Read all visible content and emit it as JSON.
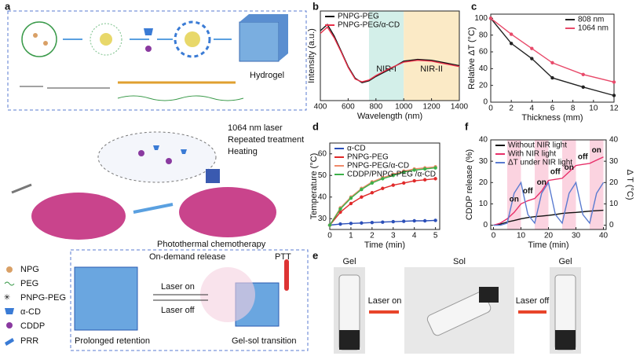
{
  "panel_labels": [
    "a",
    "b",
    "c",
    "d",
    "e",
    "f"
  ],
  "panel_a": {
    "hydrogel_label": "Hydrogel"
  },
  "schematic": {
    "laser": "1064 nm laser",
    "repeat": "Repeated treatment",
    "heating": "Heating",
    "box_title": "Photothermal chemotherapy",
    "release": "On-demand release",
    "ptt": "PTT",
    "laser_on": "Laser on",
    "laser_off": "Laser off",
    "retention": "Prolonged retention",
    "transition": "Gel-sol transition",
    "legend": [
      "NPG",
      "PEG",
      "PNPG-PEG",
      "α-CD",
      "CDDP",
      "PRR"
    ]
  },
  "panel_e": {
    "left": "Gel",
    "middle": "Sol",
    "right": "Gel",
    "laser_on": "Laser on",
    "laser_off": "Laser off"
  },
  "chart_data": [
    {
      "type": "line",
      "x_label": "Wavelength (nm)",
      "y_label": "Intensity (a.u.)",
      "x": [
        400,
        450,
        500,
        550,
        600,
        650,
        700,
        750,
        800,
        900,
        1000,
        1100,
        1200,
        1300,
        1400
      ],
      "series": [
        {
          "name": "PNPG-PEG",
          "color": "#111111",
          "values": [
            0.78,
            0.85,
            0.72,
            0.55,
            0.38,
            0.25,
            0.2,
            0.22,
            0.27,
            0.35,
            0.44,
            0.46,
            0.45,
            0.42,
            0.39
          ]
        },
        {
          "name": "PNPG-PEG/α-CD",
          "color": "#e8304a",
          "values": [
            0.75,
            0.82,
            0.7,
            0.54,
            0.37,
            0.24,
            0.21,
            0.23,
            0.28,
            0.36,
            0.43,
            0.45,
            0.44,
            0.41,
            0.38
          ]
        }
      ],
      "regions": [
        {
          "label": "NIR-I",
          "start": 750,
          "end": 1000,
          "color": "#d3efe9"
        },
        {
          "label": "NIR-II",
          "start": 1000,
          "end": 1400,
          "color": "#fbeac6"
        }
      ],
      "xlim": [
        400,
        1400
      ],
      "ylim": [
        0,
        1
      ],
      "xticks": [
        400,
        600,
        800,
        1000,
        1200,
        1400
      ],
      "yticks": [],
      "legend": "upper left"
    },
    {
      "type": "line",
      "markers": true,
      "x_label": "Thickness (mm)",
      "y_label": "Relative ΔT (°C)",
      "x": [
        0,
        2,
        4,
        6,
        9,
        12
      ],
      "series": [
        {
          "name": "808 nm",
          "color": "#222222",
          "values": [
            100,
            70,
            52,
            29,
            18,
            8
          ]
        },
        {
          "name": "1064 nm",
          "color": "#e84a6a",
          "values": [
            100,
            81,
            64,
            47,
            33,
            24
          ]
        }
      ],
      "xlim": [
        0,
        12
      ],
      "ylim": [
        0,
        105
      ],
      "xticks": [
        0,
        2,
        4,
        6,
        8,
        10,
        12
      ],
      "yticks": [
        0,
        20,
        40,
        60,
        80,
        100
      ],
      "legend": "upper right"
    },
    {
      "type": "line",
      "markers": true,
      "x_label": "Time (min)",
      "y_label": "Temperature (°C)",
      "x": [
        0,
        0.5,
        1,
        1.5,
        2,
        2.5,
        3,
        3.5,
        4,
        4.5,
        5
      ],
      "series": [
        {
          "name": "α-CD",
          "color": "#2b4fb8",
          "values": [
            27,
            27.5,
            27.8,
            28,
            28.2,
            28.4,
            28.6,
            28.8,
            29,
            29,
            29.2
          ]
        },
        {
          "name": "PNPG-PEG",
          "color": "#e02a2a",
          "values": [
            27,
            33,
            37,
            40,
            42,
            44,
            45.5,
            46.5,
            47.5,
            48,
            48.5
          ]
        },
        {
          "name": "PNPG-PEG/α-CD",
          "color": "#f08a6a",
          "values": [
            27,
            35,
            40,
            44,
            47,
            49,
            50.5,
            52,
            53,
            53.5,
            54
          ]
        },
        {
          "name": "CDDP/PNPG-PEG /α-CD",
          "color": "#3cb04a",
          "values": [
            27,
            34.5,
            39.5,
            43.5,
            46.5,
            48.5,
            50,
            51.5,
            52.5,
            53,
            53.5
          ]
        }
      ],
      "xlim": [
        0,
        5.2
      ],
      "ylim": [
        25,
        65
      ],
      "xticks": [
        0,
        1,
        2,
        3,
        4,
        5
      ],
      "yticks": [
        30,
        40,
        50,
        60
      ],
      "legend": "upper left"
    },
    {
      "type": "line",
      "x_label": "Time (min)",
      "y_label": "CDDP release (%)",
      "y2_label": "Δ T (°C)",
      "x": [
        0,
        2.5,
        5,
        7.5,
        10,
        12.5,
        15,
        17.5,
        20,
        22.5,
        25,
        27.5,
        30,
        32.5,
        35,
        37.5,
        40
      ],
      "series": [
        {
          "name": "Without NIR light",
          "color": "#111111",
          "values": [
            0,
            0.5,
            1.5,
            2.2,
            3,
            3.6,
            4,
            4.3,
            4.6,
            5,
            5.5,
            5.8,
            6,
            6.3,
            6.6,
            6.8,
            7
          ]
        },
        {
          "name": "With NIR light",
          "color": "#e8306a",
          "values": [
            0,
            1,
            3,
            6,
            10,
            11.5,
            12.5,
            16,
            21,
            21.5,
            22,
            25,
            28,
            28.5,
            29,
            30.5,
            32
          ]
        },
        {
          "name": "ΔT under NIR light",
          "color": "#5a7bd0",
          "axis": "y2",
          "values": [
            0,
            0,
            1,
            15,
            20,
            5,
            1,
            15,
            20,
            5,
            1,
            15,
            20,
            5,
            1,
            15,
            20
          ]
        }
      ],
      "spans": [
        [
          5,
          10
        ],
        [
          15,
          20
        ],
        [
          25,
          30
        ],
        [
          35,
          40
        ]
      ],
      "span_color": "#fbd3e0",
      "annotations": [
        {
          "text": "on",
          "x": 7.5,
          "y": 12
        },
        {
          "text": "off",
          "x": 12.5,
          "y": 16
        },
        {
          "text": "on",
          "x": 17.5,
          "y": 20
        },
        {
          "text": "off",
          "x": 22.5,
          "y": 25
        },
        {
          "text": "on",
          "x": 27.5,
          "y": 27
        },
        {
          "text": "off",
          "x": 32.5,
          "y": 32
        },
        {
          "text": "on",
          "x": 37.5,
          "y": 35
        }
      ],
      "xlim": [
        -1,
        41
      ],
      "ylim": [
        -2,
        40
      ],
      "y2lim": [
        -2,
        40
      ],
      "xticks": [
        0,
        10,
        20,
        30,
        40
      ],
      "yticks": [
        0,
        10,
        20,
        30,
        40
      ],
      "y2ticks": [
        0,
        10,
        20,
        30,
        40
      ],
      "legend": "upper left"
    }
  ]
}
